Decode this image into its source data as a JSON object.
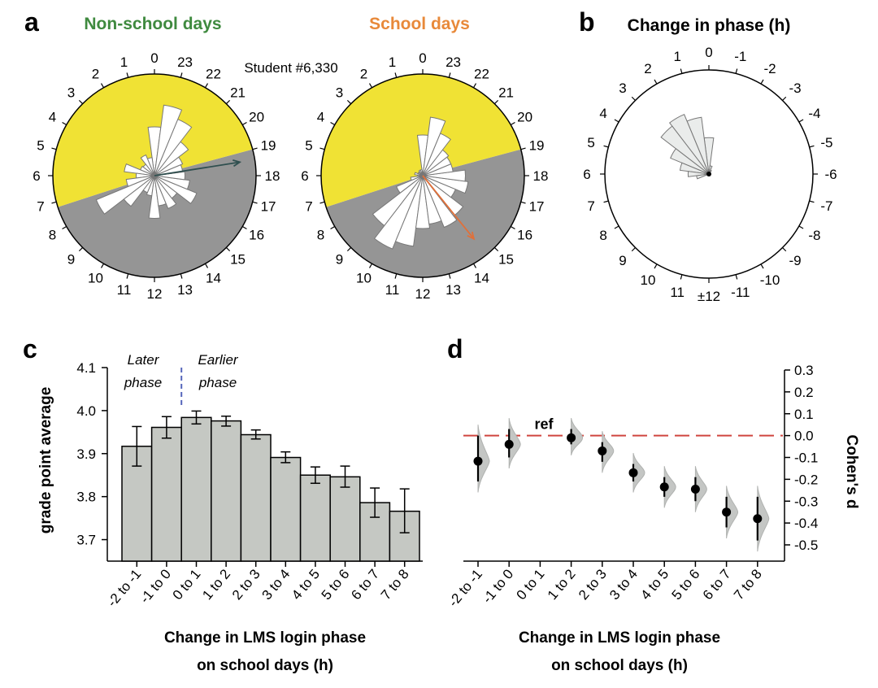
{
  "panels": {
    "a": {
      "letter": "a",
      "student_label": "Student #6,330",
      "clock_hours": [
        "0",
        "1",
        "2",
        "3",
        "4",
        "5",
        "6",
        "7",
        "8",
        "9",
        "10",
        "11",
        "12",
        "13",
        "14",
        "15",
        "16",
        "17",
        "18",
        "19",
        "20",
        "21",
        "22",
        "23"
      ],
      "colors": {
        "night": "#959595",
        "day": "#f0e234",
        "rose_fill": "#ffffff",
        "rose_stroke": "#777777"
      },
      "charts": [
        {
          "title": "Non-school days",
          "title_color": "#3f8a3f",
          "arrow_color": "#2f4f4f",
          "arrow_hour": 18.6,
          "arrow_length": 0.85,
          "boundary_hours": [
            7.2,
            19.0
          ],
          "rose_hours": [
            0,
            1,
            2,
            3,
            4,
            5,
            6,
            7,
            8,
            9,
            10,
            11,
            12,
            13,
            14,
            15,
            16,
            17,
            18,
            19,
            20,
            21,
            22,
            23
          ],
          "rose_values": [
            0.48,
            0.18,
            0.22,
            0.14,
            0.15,
            0.3,
            0.18,
            0.28,
            0.62,
            0.38,
            0.18,
            0.2,
            0.42,
            0.3,
            0.35,
            0.28,
            0.45,
            0.35,
            0.3,
            0.28,
            0.3,
            0.42,
            0.6,
            0.7
          ]
        },
        {
          "title": "School days",
          "title_color": "#e8893a",
          "arrow_color": "#e0703a",
          "arrow_hour": 14.6,
          "arrow_length": 0.8,
          "boundary_hours": [
            7.2,
            19.0
          ],
          "rose_hours": [
            0,
            1,
            2,
            3,
            4,
            5,
            6,
            7,
            8,
            9,
            10,
            11,
            12,
            13,
            14,
            15,
            16,
            17,
            18,
            19,
            20,
            21,
            22,
            23
          ],
          "rose_values": [
            0.4,
            0.06,
            0.06,
            0.05,
            0.05,
            0.08,
            0.05,
            0.12,
            0.28,
            0.62,
            0.78,
            0.7,
            0.52,
            0.48,
            0.55,
            0.5,
            0.35,
            0.45,
            0.42,
            0.3,
            0.3,
            0.32,
            0.45,
            0.58
          ]
        }
      ]
    },
    "b": {
      "letter": "b",
      "title": "Change in phase (h)",
      "labels": [
        "0",
        "1",
        "2",
        "3",
        "4",
        "5",
        "6",
        "7",
        "8",
        "9",
        "10",
        "11",
        "±12",
        "-11",
        "-10",
        "-9",
        "-8",
        "-7",
        "-6",
        "-5",
        "-4",
        "-3",
        "-2",
        "-1"
      ],
      "rose_fill": "#eaeceb",
      "rose_stroke": "#777777",
      "rose_hours": [
        0,
        1,
        2,
        3,
        4,
        5,
        6,
        7,
        -1,
        -2
      ],
      "rose_values": [
        0.35,
        0.55,
        0.62,
        0.58,
        0.4,
        0.28,
        0.2,
        0.12,
        0.08,
        0.04
      ]
    },
    "c": {
      "letter": "c",
      "annotation_later": "Later",
      "annotation_later2": "phase",
      "annotation_earlier": "Earlier",
      "annotation_earlier2": "phase",
      "divider_color": "#5566bb",
      "bar_fill": "#c5c8c3",
      "xlabel_line1": "Change in LMS login phase",
      "xlabel_line2": "on school days (h)",
      "ylabel": "grade point average"
    },
    "d": {
      "letter": "d",
      "ref_label": "ref",
      "ref_color": "#d0453f",
      "ylabel": "Cohen's d",
      "xlabel_line1": "Change in LMS login phase",
      "xlabel_line2": "on school days (h)"
    }
  },
  "chart_data": [
    {
      "type": "bar",
      "title": "",
      "categories": [
        "-2 to -1",
        "-1 to 0",
        "0 to 1",
        "1 to 2",
        "2 to 3",
        "3 to 4",
        "4 to 5",
        "5 to 6",
        "6 to 7",
        "7 to 8"
      ],
      "values": [
        3.917,
        3.961,
        3.984,
        3.976,
        3.944,
        3.891,
        3.85,
        3.846,
        3.786,
        3.766
      ],
      "error_low": [
        3.871,
        3.936,
        3.969,
        3.964,
        3.934,
        3.879,
        3.831,
        3.822,
        3.752,
        3.716
      ],
      "error_high": [
        3.963,
        3.986,
        3.999,
        3.987,
        3.955,
        3.904,
        3.869,
        3.871,
        3.82,
        3.818
      ],
      "xlabel": "Change in LMS login phase on school days (h)",
      "ylabel": "grade point average",
      "ylim": [
        3.65,
        4.1
      ],
      "yticks": [
        3.7,
        3.8,
        3.9,
        4.0,
        4.1
      ],
      "ytick_labels": [
        "3.7",
        "3.8",
        "3.9",
        "4.0",
        "4.1"
      ]
    },
    {
      "type": "scatter",
      "title": "",
      "categories": [
        "-2 to -1",
        "-1 to 0",
        "0 to 1",
        "1 to 2",
        "2 to 3",
        "3 to 4",
        "4 to 5",
        "5 to 6",
        "6 to 7",
        "7 to 8"
      ],
      "values": [
        -0.117,
        -0.04,
        null,
        -0.01,
        -0.07,
        -0.17,
        -0.235,
        -0.245,
        -0.35,
        -0.38
      ],
      "ci_low": [
        -0.21,
        -0.1,
        null,
        -0.04,
        -0.12,
        -0.21,
        -0.28,
        -0.3,
        -0.42,
        -0.48
      ],
      "ci_high": [
        0.0,
        0.03,
        null,
        0.03,
        -0.03,
        -0.13,
        -0.19,
        -0.19,
        -0.28,
        -0.28
      ],
      "reference_category": "0 to 1",
      "reference_value": 0.0,
      "ylabel": "Cohen's d",
      "xlabel": "Change in LMS login phase on school days (h)",
      "ylim": [
        -0.55,
        0.3
      ],
      "yticks": [
        0.3,
        0.2,
        0.1,
        0.0,
        -0.1,
        -0.2,
        -0.3,
        -0.4,
        -0.5
      ],
      "ytick_labels": [
        "0.3",
        "0.2",
        "0.1",
        "0.0",
        "-0.1",
        "-0.2",
        "-0.3",
        "-0.4",
        "-0.5"
      ]
    }
  ]
}
